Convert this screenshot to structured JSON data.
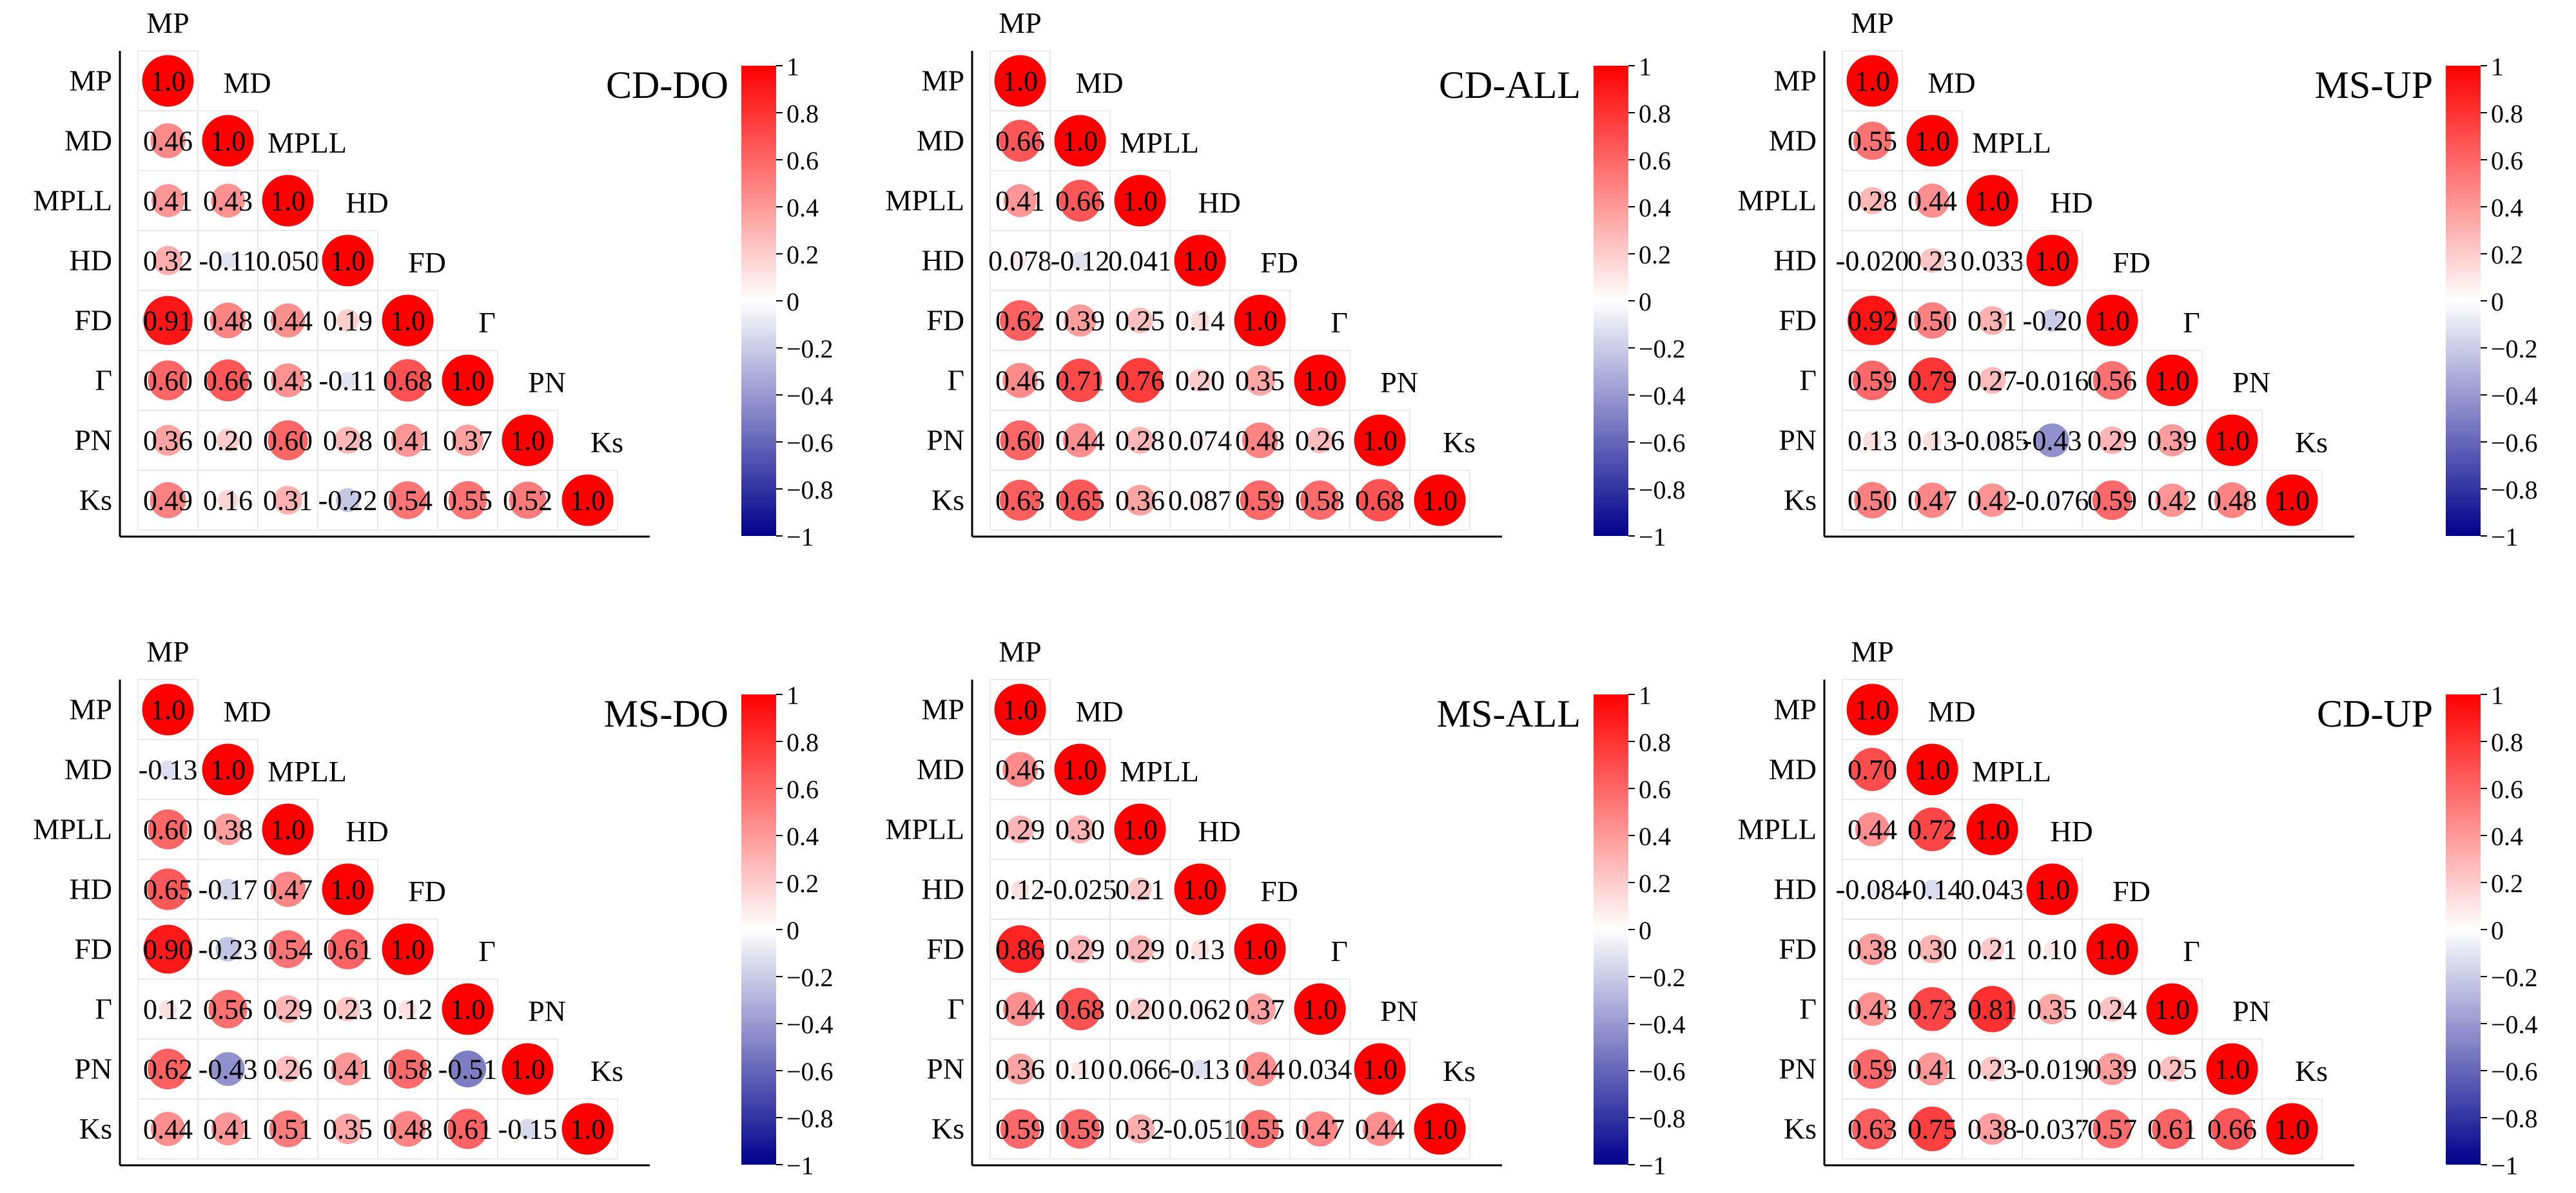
{
  "figure": {
    "description_type": "correlation matrices",
    "variables": [
      "MP",
      "MD",
      "MPLL",
      "HD",
      "FD",
      "Γ",
      "PN",
      "Ks"
    ],
    "colorbar_ticks": [
      "1",
      "0.8",
      "0.6",
      "0.4",
      "0.2",
      "0",
      "−0.2",
      "−0.4",
      "−0.6",
      "−0.8",
      "−1"
    ],
    "colors": {
      "positive": "#ff0000",
      "zero": "#ffffff",
      "negative": "#00008b"
    }
  },
  "chart_data": [
    {
      "type": "heatmap",
      "title": "CD-DO",
      "variables": [
        "MP",
        "MD",
        "MPLL",
        "HD",
        "FD",
        "Γ",
        "PN",
        "Ks"
      ],
      "clim": [
        -1,
        1
      ],
      "rows": [
        [
          "1.0"
        ],
        [
          "0.46",
          "1.0"
        ],
        [
          "0.41",
          "0.43",
          "1.0"
        ],
        [
          "0.32",
          "-0.11",
          "0.050",
          "1.0"
        ],
        [
          "0.91",
          "0.48",
          "0.44",
          "0.19",
          "1.0"
        ],
        [
          "0.60",
          "0.66",
          "0.43",
          "-0.11",
          "0.68",
          "1.0"
        ],
        [
          "0.36",
          "0.20",
          "0.60",
          "0.28",
          "0.41",
          "0.37",
          "1.0"
        ],
        [
          "0.49",
          "0.16",
          "0.31",
          "-0.22",
          "0.54",
          "0.55",
          "0.52",
          "1.0"
        ]
      ]
    },
    {
      "type": "heatmap",
      "title": "CD-ALL",
      "variables": [
        "MP",
        "MD",
        "MPLL",
        "HD",
        "FD",
        "Γ",
        "PN",
        "Ks"
      ],
      "clim": [
        -1,
        1
      ],
      "rows": [
        [
          "1.0"
        ],
        [
          "0.66",
          "1.0"
        ],
        [
          "0.41",
          "0.66",
          "1.0"
        ],
        [
          "0.078",
          "-0.12",
          "0.041",
          "1.0"
        ],
        [
          "0.62",
          "0.39",
          "0.25",
          "0.14",
          "1.0"
        ],
        [
          "0.46",
          "0.71",
          "0.76",
          "0.20",
          "0.35",
          "1.0"
        ],
        [
          "0.60",
          "0.44",
          "0.28",
          "0.074",
          "0.48",
          "0.26",
          "1.0"
        ],
        [
          "0.63",
          "0.65",
          "0.36",
          "0.087",
          "0.59",
          "0.58",
          "0.68",
          "1.0"
        ]
      ]
    },
    {
      "type": "heatmap",
      "title": "MS-UP",
      "variables": [
        "MP",
        "MD",
        "MPLL",
        "HD",
        "FD",
        "Γ",
        "PN",
        "Ks"
      ],
      "clim": [
        -1,
        1
      ],
      "rows": [
        [
          "1.0"
        ],
        [
          "0.55",
          "1.0"
        ],
        [
          "0.28",
          "0.44",
          "1.0"
        ],
        [
          "-0.020",
          "0.23",
          "0.033",
          "1.0"
        ],
        [
          "0.92",
          "0.50",
          "0.31",
          "-0.20",
          "1.0"
        ],
        [
          "0.59",
          "0.79",
          "0.27",
          "-0.016",
          "0.56",
          "1.0"
        ],
        [
          "0.13",
          "0.13",
          "-0.085",
          "-0.43",
          "0.29",
          "0.39",
          "1.0"
        ],
        [
          "0.50",
          "0.47",
          "0.42",
          "-0.076",
          "0.59",
          "0.42",
          "0.48",
          "1.0"
        ]
      ]
    },
    {
      "type": "heatmap",
      "title": "MS-DO",
      "variables": [
        "MP",
        "MD",
        "MPLL",
        "HD",
        "FD",
        "Γ",
        "PN",
        "Ks"
      ],
      "clim": [
        -1,
        1
      ],
      "rows": [
        [
          "1.0"
        ],
        [
          "-0.13",
          "1.0"
        ],
        [
          "0.60",
          "0.38",
          "1.0"
        ],
        [
          "0.65",
          "-0.17",
          "0.47",
          "1.0"
        ],
        [
          "0.90",
          "-0.23",
          "0.54",
          "0.61",
          "1.0"
        ],
        [
          "0.12",
          "0.56",
          "0.29",
          "0.23",
          "0.12",
          "1.0"
        ],
        [
          "0.62",
          "-0.43",
          "0.26",
          "0.41",
          "0.58",
          "-0.51",
          "1.0"
        ],
        [
          "0.44",
          "0.41",
          "0.51",
          "0.35",
          "0.48",
          "0.61",
          "-0.15",
          "1.0"
        ]
      ]
    },
    {
      "type": "heatmap",
      "title": "MS-ALL",
      "variables": [
        "MP",
        "MD",
        "MPLL",
        "HD",
        "FD",
        "Γ",
        "PN",
        "Ks"
      ],
      "clim": [
        -1,
        1
      ],
      "rows": [
        [
          "1.0"
        ],
        [
          "0.46",
          "1.0"
        ],
        [
          "0.29",
          "0.30",
          "1.0"
        ],
        [
          "0.12",
          "-0.025",
          "0.21",
          "1.0"
        ],
        [
          "0.86",
          "0.29",
          "0.29",
          "0.13",
          "1.0"
        ],
        [
          "0.44",
          "0.68",
          "0.20",
          "0.062",
          "0.37",
          "1.0"
        ],
        [
          "0.36",
          "0.10",
          "0.066",
          "-0.13",
          "0.44",
          "0.034",
          "1.0"
        ],
        [
          "0.59",
          "0.59",
          "0.32",
          "-0.051",
          "0.55",
          "0.47",
          "0.44",
          "1.0"
        ]
      ]
    },
    {
      "type": "heatmap",
      "title": "CD-UP",
      "variables": [
        "MP",
        "MD",
        "MPLL",
        "HD",
        "FD",
        "Γ",
        "PN",
        "Ks"
      ],
      "clim": [
        -1,
        1
      ],
      "rows": [
        [
          "1.0"
        ],
        [
          "0.70",
          "1.0"
        ],
        [
          "0.44",
          "0.72",
          "1.0"
        ],
        [
          "-0.084",
          "-0.14",
          "0.043",
          "1.0"
        ],
        [
          "0.38",
          "0.30",
          "0.21",
          "0.10",
          "1.0"
        ],
        [
          "0.43",
          "0.73",
          "0.81",
          "0.35",
          "0.24",
          "1.0"
        ],
        [
          "0.59",
          "0.41",
          "0.23",
          "-0.019",
          "0.39",
          "0.25",
          "1.0"
        ],
        [
          "0.63",
          "0.75",
          "0.38",
          "-0.037",
          "0.57",
          "0.61",
          "0.66",
          "1.0"
        ]
      ]
    }
  ]
}
